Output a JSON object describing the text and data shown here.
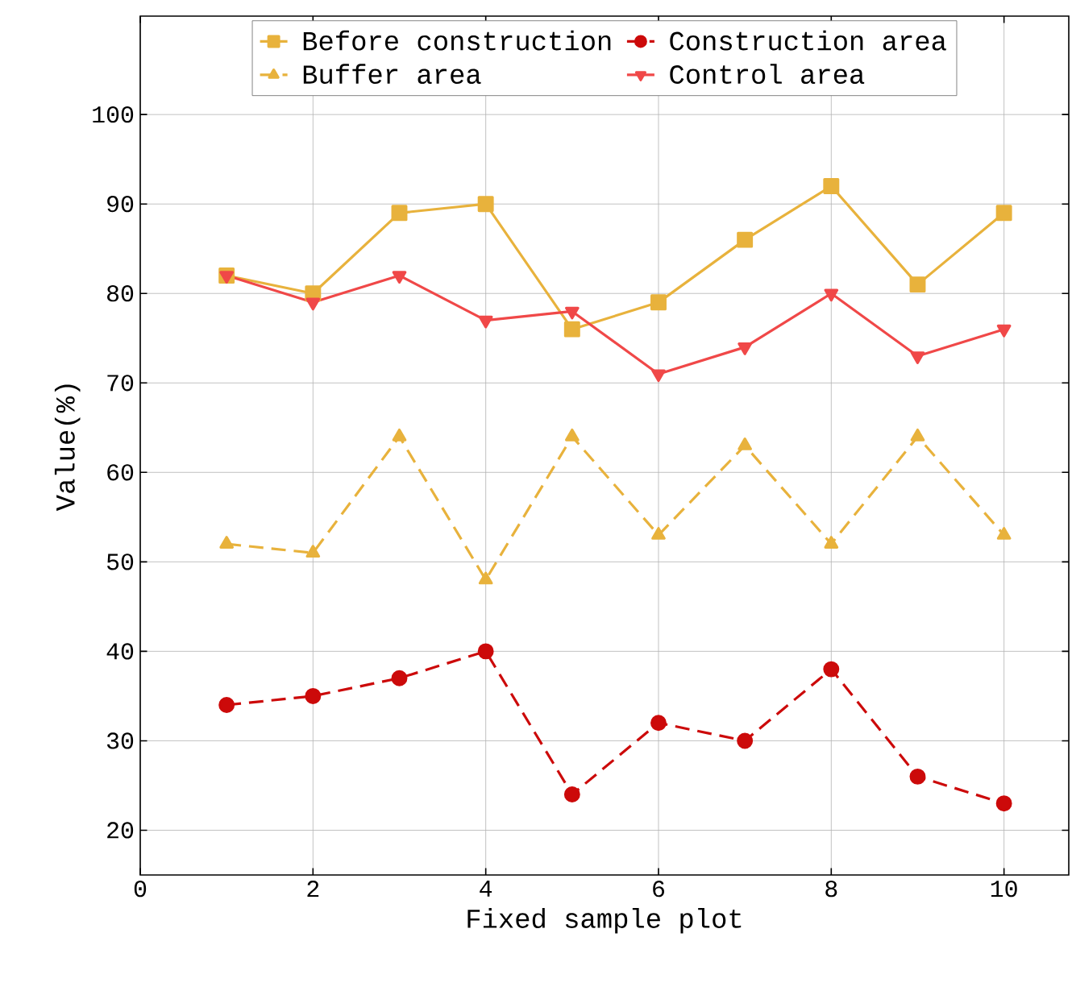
{
  "chart_data": {
    "type": "line",
    "xlabel": "Fixed sample plot",
    "ylabel": "Value(%)",
    "x": [
      1,
      2,
      3,
      4,
      5,
      6,
      7,
      8,
      9,
      10
    ],
    "xlim": [
      0,
      10.75
    ],
    "ylim": [
      15,
      111
    ],
    "xticks": [
      0,
      2,
      4,
      6,
      8,
      10
    ],
    "yticks": [
      20,
      30,
      40,
      50,
      60,
      70,
      80,
      90,
      100
    ],
    "grid": true,
    "legend": "top",
    "series": [
      {
        "name": "Before construction",
        "color": "#e8b23c",
        "marker": "square",
        "line_style": "solid",
        "values": [
          82,
          80,
          89,
          90,
          76,
          79,
          86,
          92,
          81,
          89
        ]
      },
      {
        "name": "Construction area",
        "color": "#cc0a0a",
        "marker": "circle",
        "line_style": "dashed",
        "values": [
          34,
          35,
          37,
          40,
          24,
          32,
          30,
          38,
          26,
          23
        ]
      },
      {
        "name": "Buffer area",
        "color": "#e8b23c",
        "marker": "triangle",
        "line_style": "dashed",
        "values": [
          52,
          51,
          64,
          48,
          64,
          53,
          63,
          52,
          64,
          53
        ]
      },
      {
        "name": "Control area",
        "color": "#f04848",
        "marker": "triangle_down",
        "line_style": "solid",
        "values": [
          82,
          79,
          82,
          77,
          78,
          71,
          74,
          80,
          73,
          76
        ]
      }
    ]
  }
}
